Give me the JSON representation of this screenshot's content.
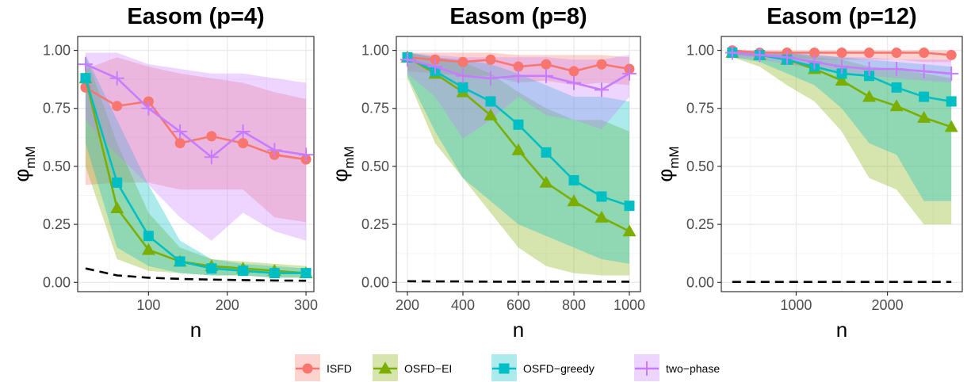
{
  "chart_data": [
    {
      "type": "line",
      "title": "Easom (p=4)",
      "xlabel": "n",
      "ylabel": "φ",
      "ylabel_sub": "mM",
      "xlim": [
        10,
        310
      ],
      "ylim": [
        -0.04,
        1.06
      ],
      "xticks": [
        100,
        200,
        300
      ],
      "yticks": [
        0.0,
        0.25,
        0.5,
        0.75,
        1.0
      ],
      "ytick_labels": [
        "0.00",
        "0.25",
        "0.50",
        "0.75",
        "1.00"
      ],
      "x": [
        20,
        60,
        100,
        140,
        180,
        220,
        260,
        300
      ],
      "series": [
        {
          "name": "ISFD",
          "values": [
            0.84,
            0.76,
            0.78,
            0.6,
            0.63,
            0.6,
            0.55,
            0.53
          ],
          "band_low": [
            0.42,
            0.43,
            0.43,
            0.4,
            0.4,
            0.4,
            0.28,
            0.26
          ],
          "band_high": [
            0.92,
            0.97,
            0.93,
            0.9,
            0.88,
            0.86,
            0.82,
            0.79
          ]
        },
        {
          "name": "OSFD-EI",
          "values": [
            0.88,
            0.32,
            0.14,
            0.09,
            0.07,
            0.06,
            0.05,
            0.04
          ],
          "band_low": [
            0.5,
            0.1,
            0.05,
            0.04,
            0.03,
            0.03,
            0.02,
            0.02
          ],
          "band_high": [
            0.98,
            0.6,
            0.3,
            0.15,
            0.1,
            0.09,
            0.08,
            0.07
          ]
        },
        {
          "name": "OSFD-greedy",
          "values": [
            0.88,
            0.43,
            0.2,
            0.09,
            0.06,
            0.05,
            0.04,
            0.04
          ],
          "band_low": [
            0.6,
            0.15,
            0.07,
            0.04,
            0.03,
            0.03,
            0.02,
            0.02
          ],
          "band_high": [
            0.98,
            0.7,
            0.42,
            0.18,
            0.1,
            0.08,
            0.07,
            0.06
          ]
        },
        {
          "name": "two-phase",
          "values": [
            0.94,
            0.88,
            0.75,
            0.65,
            0.54,
            0.65,
            0.57,
            0.55
          ],
          "band_low": [
            0.7,
            0.55,
            0.42,
            0.28,
            0.18,
            0.3,
            0.22,
            0.18
          ],
          "band_high": [
            0.99,
            0.99,
            0.94,
            0.92,
            0.9,
            0.9,
            0.88,
            0.86
          ]
        }
      ],
      "dashed_line": {
        "x": [
          20,
          60,
          100,
          140,
          180,
          220,
          260,
          300
        ],
        "values": [
          0.06,
          0.03,
          0.02,
          0.015,
          0.012,
          0.01,
          0.008,
          0.007
        ]
      }
    },
    {
      "type": "line",
      "title": "Easom (p=8)",
      "xlabel": "n",
      "ylabel": "φ",
      "ylabel_sub": "mM",
      "xlim": [
        160,
        1040
      ],
      "ylim": [
        -0.04,
        1.06
      ],
      "xticks": [
        200,
        400,
        600,
        800,
        1000
      ],
      "yticks": [
        0.0,
        0.25,
        0.5,
        0.75,
        1.0
      ],
      "ytick_labels": [
        "0.00",
        "0.25",
        "0.50",
        "0.75",
        "1.00"
      ],
      "x": [
        200,
        300,
        400,
        500,
        600,
        700,
        800,
        900,
        1000
      ],
      "series": [
        {
          "name": "ISFD",
          "values": [
            0.97,
            0.96,
            0.95,
            0.96,
            0.93,
            0.94,
            0.91,
            0.94,
            0.92
          ],
          "band_low": [
            0.91,
            0.9,
            0.89,
            0.89,
            0.86,
            0.87,
            0.85,
            0.86,
            0.85
          ],
          "band_high": [
            0.99,
            0.99,
            0.99,
            0.99,
            0.98,
            0.98,
            0.98,
            0.98,
            0.97
          ]
        },
        {
          "name": "OSFD-EI",
          "values": [
            0.97,
            0.9,
            0.82,
            0.72,
            0.57,
            0.43,
            0.35,
            0.28,
            0.22
          ],
          "band_low": [
            0.88,
            0.6,
            0.45,
            0.3,
            0.15,
            0.07,
            0.04,
            0.03,
            0.03
          ],
          "band_high": [
            0.99,
            0.97,
            0.95,
            0.9,
            0.82,
            0.75,
            0.7,
            0.7,
            0.65
          ]
        },
        {
          "name": "OSFD-greedy",
          "values": [
            0.97,
            0.91,
            0.84,
            0.78,
            0.68,
            0.56,
            0.44,
            0.37,
            0.33
          ],
          "band_low": [
            0.89,
            0.65,
            0.45,
            0.35,
            0.25,
            0.2,
            0.15,
            0.1,
            0.08
          ],
          "band_high": [
            0.99,
            0.97,
            0.96,
            0.94,
            0.9,
            0.85,
            0.8,
            0.8,
            0.78
          ]
        },
        {
          "name": "two-phase",
          "values": [
            0.96,
            0.93,
            0.89,
            0.88,
            0.89,
            0.89,
            0.86,
            0.83,
            0.9
          ],
          "band_low": [
            0.9,
            0.8,
            0.62,
            0.7,
            0.8,
            0.72,
            0.7,
            0.66,
            0.8
          ],
          "band_high": [
            0.99,
            0.98,
            0.97,
            0.97,
            0.97,
            0.97,
            0.96,
            0.96,
            0.98
          ]
        }
      ],
      "dashed_line": {
        "x": [
          200,
          300,
          400,
          500,
          600,
          700,
          800,
          900,
          1000
        ],
        "values": [
          0.005,
          0.004,
          0.004,
          0.003,
          0.003,
          0.003,
          0.003,
          0.003,
          0.003
        ]
      }
    },
    {
      "type": "line",
      "title": "Easom (p=12)",
      "xlabel": "n",
      "ylabel": "φ",
      "ylabel_sub": "mM",
      "xlim": [
        180,
        2820
      ],
      "ylim": [
        -0.04,
        1.06
      ],
      "xticks": [
        1000,
        2000
      ],
      "yticks": [
        0.0,
        0.25,
        0.5,
        0.75,
        1.0
      ],
      "ytick_labels": [
        "0.00",
        "0.25",
        "0.50",
        "0.75",
        "1.00"
      ],
      "x": [
        300,
        600,
        900,
        1200,
        1500,
        1800,
        2100,
        2400,
        2700
      ],
      "series": [
        {
          "name": "ISFD",
          "values": [
            1.0,
            0.99,
            0.99,
            0.99,
            0.99,
            0.99,
            0.99,
            0.99,
            0.98
          ],
          "band_low": [
            0.98,
            0.97,
            0.97,
            0.96,
            0.96,
            0.96,
            0.96,
            0.95,
            0.95
          ],
          "band_high": [
            1.0,
            1.0,
            1.0,
            1.0,
            1.0,
            1.0,
            1.0,
            1.0,
            1.0
          ]
        },
        {
          "name": "OSFD-EI",
          "values": [
            0.99,
            0.98,
            0.96,
            0.92,
            0.87,
            0.8,
            0.76,
            0.71,
            0.67
          ],
          "band_low": [
            0.97,
            0.93,
            0.85,
            0.78,
            0.65,
            0.45,
            0.4,
            0.25,
            0.25
          ],
          "band_high": [
            1.0,
            0.99,
            0.99,
            0.97,
            0.96,
            0.93,
            0.92,
            0.9,
            0.88
          ]
        },
        {
          "name": "OSFD-greedy",
          "values": [
            0.99,
            0.98,
            0.96,
            0.93,
            0.9,
            0.89,
            0.84,
            0.8,
            0.78
          ],
          "band_low": [
            0.97,
            0.95,
            0.9,
            0.85,
            0.75,
            0.6,
            0.55,
            0.35,
            0.35
          ],
          "band_high": [
            1.0,
            0.99,
            0.99,
            0.98,
            0.97,
            0.96,
            0.95,
            0.94,
            0.93
          ]
        },
        {
          "name": "two-phase",
          "values": [
            0.99,
            0.98,
            0.97,
            0.95,
            0.93,
            0.92,
            0.92,
            0.91,
            0.9
          ],
          "band_low": [
            0.97,
            0.96,
            0.94,
            0.92,
            0.9,
            0.89,
            0.88,
            0.87,
            0.86
          ],
          "band_high": [
            1.0,
            1.0,
            0.99,
            0.98,
            0.97,
            0.97,
            0.96,
            0.96,
            0.96
          ]
        }
      ],
      "dashed_line": {
        "x": [
          300,
          600,
          900,
          1200,
          1500,
          1800,
          2100,
          2400,
          2700
        ],
        "values": [
          0.002,
          0.002,
          0.002,
          0.002,
          0.002,
          0.002,
          0.002,
          0.002,
          0.002
        ]
      }
    }
  ],
  "legend": {
    "placement": "bottom",
    "items": [
      {
        "label": "ISFD",
        "color": "#F8766D",
        "marker": "circle"
      },
      {
        "label": "OSFD−EI",
        "color": "#7CAE00",
        "marker": "triangle"
      },
      {
        "label": "OSFD−greedy",
        "color": "#00BFC4",
        "marker": "square"
      },
      {
        "label": "two−phase",
        "color": "#C77CFF",
        "marker": "plus"
      }
    ]
  },
  "colors": {
    "ISFD": "#F8766D",
    "OSFD-EI": "#7CAE00",
    "OSFD-greedy": "#00BFC4",
    "two-phase": "#C77CFF",
    "dashed": "#000000",
    "grid_major": "#ebebeb",
    "grid_minor": "#f5f5f5",
    "panel_border": "#333333"
  }
}
